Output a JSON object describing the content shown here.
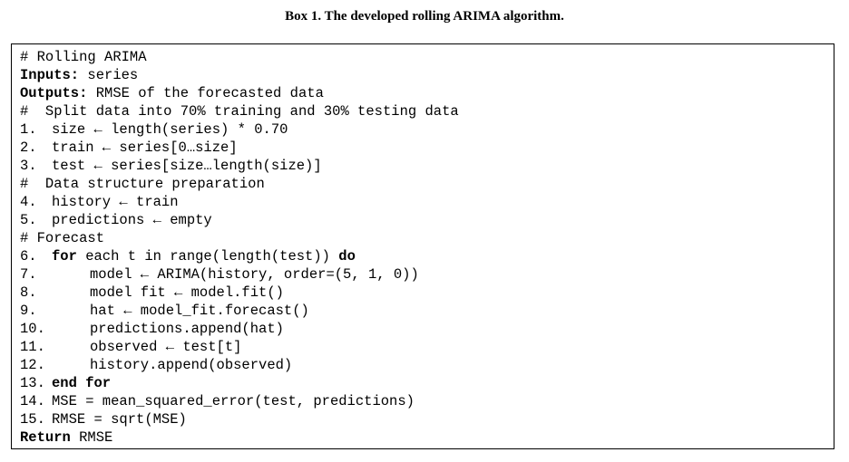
{
  "caption": "Box 1. The developed rolling ARIMA algorithm.",
  "algorithm": {
    "comment_title": "# Rolling ARIMA",
    "inputs_label": "Inputs:",
    "inputs_value": " series",
    "outputs_label": "Outputs:",
    "outputs_value": " RMSE of the forecasted data",
    "comment_split": "#  Split data into 70% training and 30% testing data",
    "l1_num": "1.",
    "l1_text": "size ← length(series) * 0.70",
    "l2_num": "2.",
    "l2_text": "train ← series[0…size]",
    "l3_num": "3.",
    "l3_text": "test ← series[size…length(size)]",
    "comment_prep": "#  Data structure preparation",
    "l4_num": "4.",
    "l4_text": "history ← train",
    "l5_num": "5.",
    "l5_text": "predictions ← empty",
    "comment_forecast": "# Forecast",
    "l6_num": "6.",
    "l6_kw1": "for",
    "l6_text": " each t in range(length(test)) ",
    "l6_kw2": "do",
    "l7_num": "7.",
    "l7_text": "model ← ARIMA(history, order=(5, 1, 0))",
    "l8_num": "8.",
    "l8_text": "model fit ← model.fit()",
    "l9_num": "9.",
    "l9_text": "hat ← model_fit.forecast()",
    "l10_num": "10.",
    "l10_text": "predictions.append(hat)",
    "l11_num": "11.",
    "l11_text": "observed ← test[t]",
    "l12_num": "12.",
    "l12_text": "history.append(observed)",
    "l13_num": "13.",
    "l13_kw": "end for",
    "l14_num": "14.",
    "l14_text": "MSE = mean_squared_error(test, predictions)",
    "l15_num": "15.",
    "l15_text": "RMSE = sqrt(MSE)",
    "return_kw": "Return",
    "return_text": " RMSE"
  }
}
